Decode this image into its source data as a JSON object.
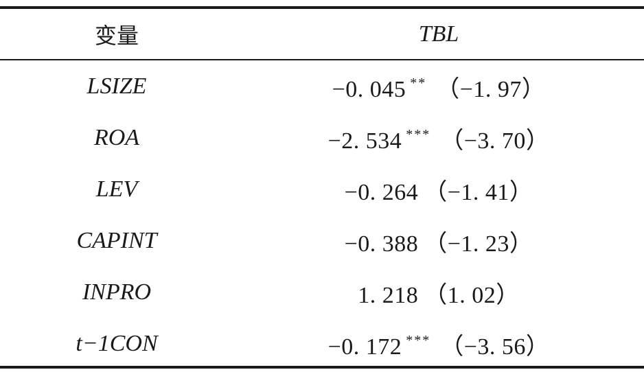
{
  "header": {
    "variable_label": "变量",
    "value_label": "TBL"
  },
  "rows": [
    {
      "variable": "LSIZE",
      "coef": "−0. 045",
      "stars": "**",
      "tstat": "（−1. 97）"
    },
    {
      "variable": "ROA",
      "coef": "−2. 534",
      "stars": "***",
      "tstat": "（−3. 70）"
    },
    {
      "variable": "LEV",
      "coef": "−0. 264",
      "stars": "",
      "tstat": "（−1. 41）"
    },
    {
      "variable": "CAPINT",
      "coef": "−0. 388",
      "stars": "",
      "tstat": "（−1. 23）"
    },
    {
      "variable": "INPRO",
      "coef": "1. 218",
      "stars": "",
      "tstat": "（1. 02）"
    },
    {
      "variable": "t−1CON",
      "coef": "−0. 172",
      "stars": "***",
      "tstat": "（−3. 56）"
    }
  ]
}
